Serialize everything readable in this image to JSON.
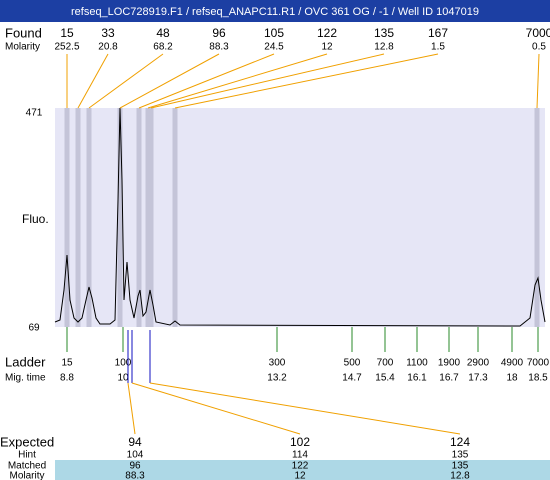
{
  "header": {
    "title": "refseq_LOC728919.F1 / refseq_ANAPC11.R1 / OVC 361 OG / -1 / Well ID 1047019"
  },
  "found": {
    "label": "Found",
    "values": [
      "15",
      "33",
      "48",
      "96",
      "105",
      "122",
      "135",
      "167",
      "7000"
    ]
  },
  "molarity": {
    "label": "Molarity",
    "values": [
      "252.5",
      "20.8",
      "68.2",
      "88.3",
      "24.5",
      "12",
      "12.8",
      "1.5",
      "0.5"
    ]
  },
  "axis": {
    "label": "Fluo.",
    "top": "471",
    "bottom": "69"
  },
  "ladder": {
    "label": "Ladder",
    "values": [
      "15",
      "100",
      "300",
      "500",
      "700",
      "1100",
      "1900",
      "2900",
      "4900",
      "7000"
    ]
  },
  "mig_time": {
    "label": "Mig. time",
    "values": [
      "8.8",
      "10",
      "13.2",
      "14.7",
      "15.4",
      "16.1",
      "16.7",
      "17.3",
      "18",
      "18.5"
    ]
  },
  "expected": {
    "label": "Expected",
    "values": [
      "94",
      "102",
      "124"
    ]
  },
  "hint": {
    "label": "Hint",
    "values": [
      "104",
      "114",
      "135"
    ]
  },
  "matched": {
    "label": "Matched",
    "values": [
      "96",
      "122",
      "135"
    ]
  },
  "matched_molarity": {
    "label": "Molarity",
    "values": [
      "88.3",
      "12",
      "12.8"
    ]
  }
}
